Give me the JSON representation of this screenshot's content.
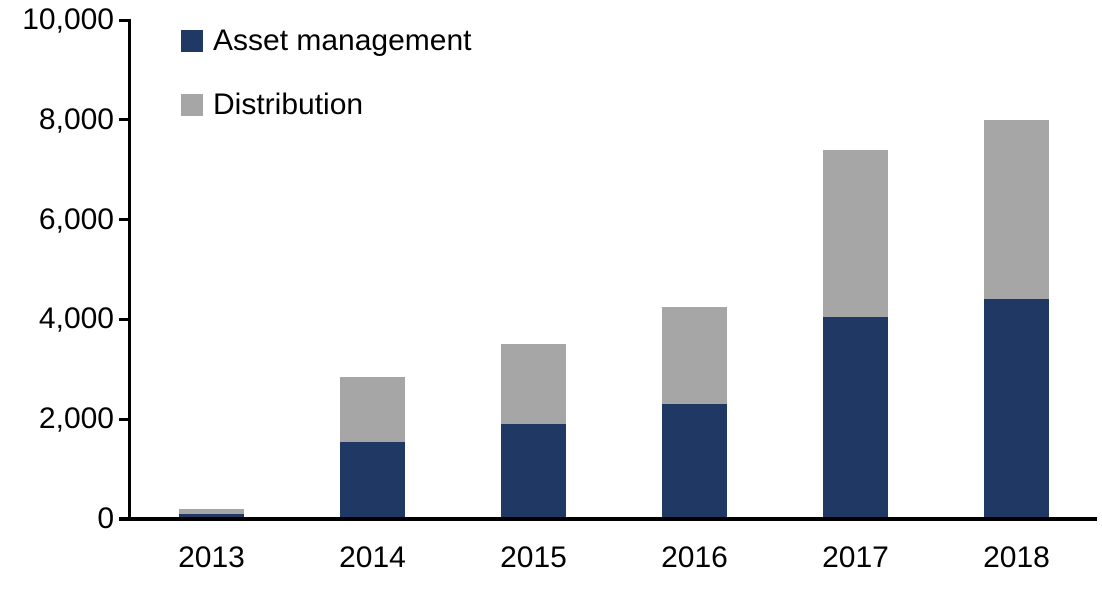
{
  "chart_data": {
    "type": "bar",
    "stacked": true,
    "title": "",
    "xlabel": "",
    "ylabel": "",
    "categories": [
      "2013",
      "2014",
      "2015",
      "2016",
      "2017",
      "2018"
    ],
    "series": [
      {
        "name": "Asset management",
        "color": "#1F3864",
        "values": [
          100,
          1550,
          1900,
          2300,
          4050,
          4400
        ]
      },
      {
        "name": "Distribution",
        "color": "#A6A6A6",
        "values": [
          100,
          1300,
          1600,
          1950,
          3350,
          3600
        ]
      }
    ],
    "stack_totals": [
      200,
      2850,
      3500,
      4250,
      7400,
      8000
    ],
    "ylim": [
      0,
      10000
    ],
    "yticks": [
      0,
      2000,
      4000,
      6000,
      8000,
      10000
    ],
    "ytick_labels": [
      "0",
      "2,000",
      "4,000",
      "6,000",
      "8,000",
      "10,000"
    ],
    "grid": false,
    "legend_position": "top-left",
    "axis_color": "#000000",
    "text_color": "#000000",
    "background_color": "#FFFFFF"
  }
}
